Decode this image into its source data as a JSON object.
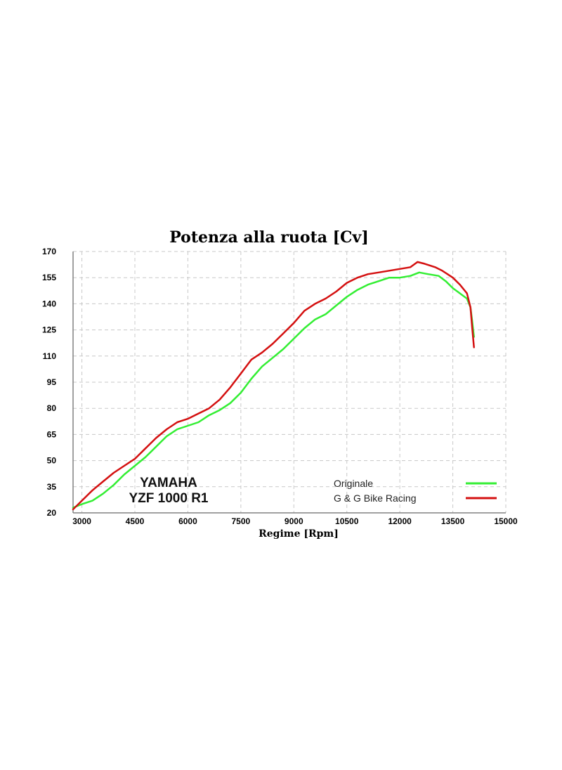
{
  "chart_data": {
    "type": "line",
    "title": "Potenza alla ruota  [Cv]",
    "xlabel": "Regime [Rpm]",
    "ylabel": "",
    "xlim": [
      2750,
      15000
    ],
    "ylim": [
      20,
      170
    ],
    "xticks": [
      3000,
      4500,
      6000,
      7500,
      9000,
      10500,
      12000,
      13500,
      15000
    ],
    "yticks": [
      20,
      35,
      50,
      65,
      80,
      95,
      110,
      125,
      140,
      155,
      170
    ],
    "grid": true,
    "legend_position": "bottom-right",
    "annotation": {
      "line1": "YAMAHA",
      "line2": "YZF 1000 R1"
    },
    "series": [
      {
        "name": "Originale",
        "color": "#33ee33",
        "x": [
          2750,
          3000,
          3300,
          3600,
          3900,
          4200,
          4500,
          4800,
          5100,
          5400,
          5700,
          6000,
          6300,
          6600,
          6900,
          7200,
          7500,
          7800,
          8100,
          8400,
          8700,
          9000,
          9300,
          9600,
          9900,
          10200,
          10500,
          10800,
          11100,
          11400,
          11700,
          12000,
          12300,
          12550,
          12800,
          13100,
          13300,
          13500,
          13700,
          13900,
          14000,
          14050,
          14100
        ],
        "y": [
          23,
          25,
          27,
          31,
          36,
          42,
          47,
          52,
          58,
          64,
          68,
          70,
          72,
          76,
          79,
          83,
          89,
          97,
          104,
          109,
          114,
          120,
          126,
          131,
          134,
          139,
          144,
          148,
          151,
          153,
          155,
          155,
          156,
          158,
          157,
          156,
          153,
          149,
          146,
          143,
          138,
          130,
          121
        ]
      },
      {
        "name": "G & G Bike Racing",
        "color": "#d41010",
        "x": [
          2750,
          3000,
          3300,
          3600,
          3900,
          4200,
          4500,
          4800,
          5100,
          5400,
          5700,
          6000,
          6300,
          6600,
          6900,
          7200,
          7500,
          7800,
          8100,
          8400,
          8700,
          9000,
          9300,
          9600,
          9900,
          10200,
          10500,
          10800,
          11100,
          11400,
          11700,
          12000,
          12300,
          12500,
          12700,
          13000,
          13200,
          13500,
          13700,
          13900,
          14000,
          14050,
          14100
        ],
        "y": [
          22,
          27,
          33,
          38,
          43,
          47,
          51,
          57,
          63,
          68,
          72,
          74,
          77,
          80,
          85,
          92,
          100,
          108,
          112,
          117,
          123,
          129,
          136,
          140,
          143,
          147,
          152,
          155,
          157,
          158,
          159,
          160,
          161,
          164,
          163,
          161,
          159,
          155,
          151,
          146,
          138,
          126,
          115
        ]
      }
    ]
  }
}
